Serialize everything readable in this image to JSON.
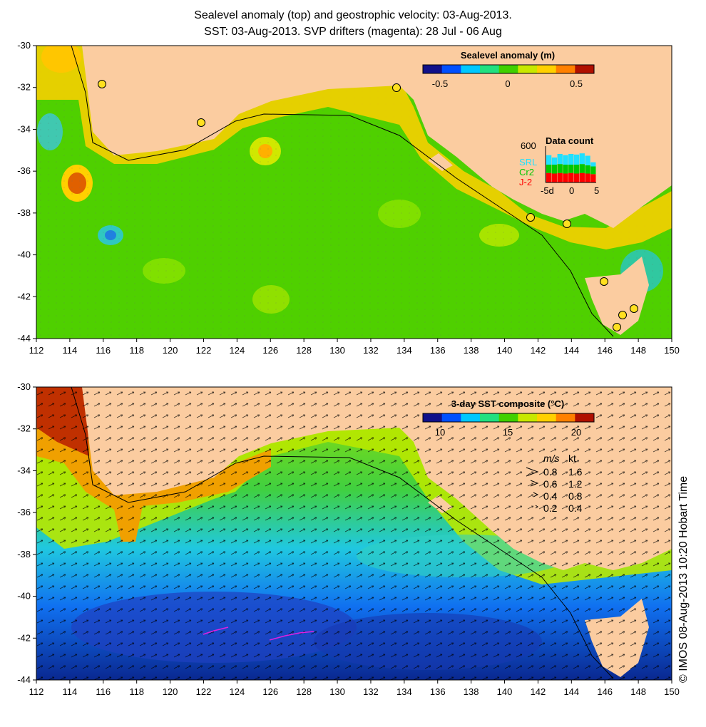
{
  "title_line1": "Sealevel anomaly (top) and geostrophic velocity: 03-Aug-2013.",
  "title_line2": "SST: 03-Aug-2013. SVP drifters (magenta): 28 Jul - 06 Aug",
  "copyright": "© IMOS 08-Aug-2013 10:20 Hobart Time",
  "axes": {
    "lon_ticks": [
      "112",
      "114",
      "116",
      "118",
      "120",
      "122",
      "124",
      "126",
      "128",
      "130",
      "132",
      "134",
      "136",
      "138",
      "140",
      "142",
      "144",
      "146",
      "148",
      "150"
    ],
    "lat_ticks": [
      "-30",
      "-32",
      "-34",
      "-36",
      "-38",
      "-40",
      "-42",
      "-44"
    ]
  },
  "top_panel": {
    "colorbar_title": "Sealevel anomaly (m)",
    "colorbar_ticks": [
      "-0.5",
      "0",
      "0.5"
    ],
    "colorbar_colors": [
      "#10108a",
      "#0050ff",
      "#00c8ff",
      "#20e080",
      "#40d000",
      "#c8e800",
      "#ffd000",
      "#ff8000",
      "#b01000"
    ],
    "data_count": {
      "title": "Data count",
      "ymax_label": "600",
      "series": [
        {
          "name": "SRL",
          "color": "#20e0ff"
        },
        {
          "name": "Cr2",
          "color": "#00c800"
        },
        {
          "name": "J-2",
          "color": "#ff0000"
        }
      ],
      "x_ticks": [
        "-5d",
        "0",
        "5"
      ],
      "bars": [
        {
          "j2": 160,
          "cr2": 140,
          "srl": 160
        },
        {
          "j2": 150,
          "cr2": 150,
          "srl": 120
        },
        {
          "j2": 160,
          "cr2": 150,
          "srl": 170
        },
        {
          "j2": 150,
          "cr2": 150,
          "srl": 160
        },
        {
          "j2": 160,
          "cr2": 140,
          "srl": 180
        },
        {
          "j2": 150,
          "cr2": 150,
          "srl": 170
        },
        {
          "j2": 160,
          "cr2": 150,
          "srl": 180
        },
        {
          "j2": 150,
          "cr2": 140,
          "srl": 160
        },
        {
          "j2": 140,
          "cr2": 130,
          "srl": 70
        }
      ]
    }
  },
  "bottom_panel": {
    "colorbar_title": "3-day SST composite (°C)",
    "colorbar_ticks": [
      "10",
      "15",
      "20"
    ],
    "colorbar_colors": [
      "#10108a",
      "#0050ff",
      "#00c8ff",
      "#20e080",
      "#40d000",
      "#c8e800",
      "#ffd000",
      "#ff8000",
      "#b01000"
    ],
    "speed_legend": {
      "header_ms": "m/s",
      "header_kt": "kt",
      "rows": [
        {
          "ms": "0.8",
          "kt": "1.6"
        },
        {
          "ms": "0.6",
          "kt": "1.2"
        },
        {
          "ms": "0.4",
          "kt": "0.8"
        },
        {
          "ms": "0.2",
          "kt": "0.4"
        }
      ]
    }
  },
  "colors": {
    "land": "#fbcca0",
    "ocean_ssh": "#50d000",
    "ocean_sst_warm": "#a0e000",
    "ocean_sst_cool": "#20d0e0",
    "ocean_sst_cold": "#1060e8"
  }
}
